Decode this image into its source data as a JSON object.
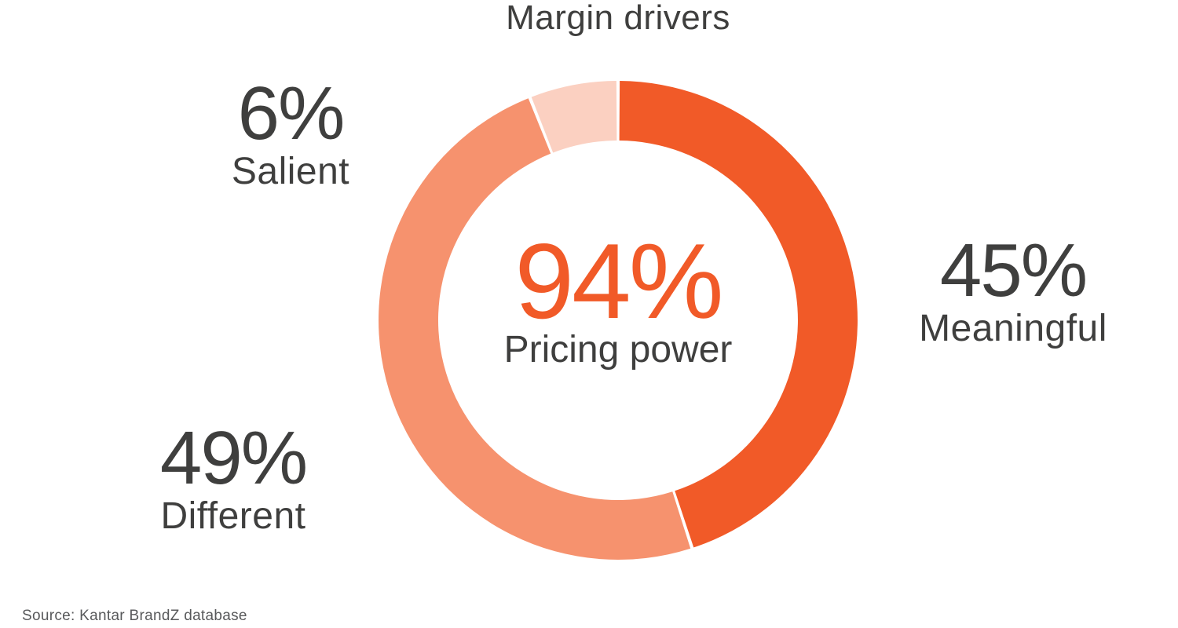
{
  "chart_data": {
    "type": "donut",
    "title": "Margin drivers",
    "total": 100,
    "start_angle_deg": 0,
    "clockwise": true,
    "gap_deg": 0.8,
    "legend_position": "callouts-around-donut",
    "center_label": {
      "value": "94%",
      "caption": "Pricing power"
    },
    "segments": [
      {
        "label": "Meaningful",
        "value": 45,
        "value_label": "45%",
        "color": "#F15A28"
      },
      {
        "label": "Different",
        "value": 49,
        "value_label": "49%",
        "color": "#F6926E"
      },
      {
        "label": "Salient",
        "value": 6,
        "value_label": "6%",
        "color": "#FBD0C1"
      }
    ]
  },
  "colors": {
    "text_dark": "#3F3F3E",
    "accent_orange": "#F15A28",
    "source_gray": "#58595B",
    "background": "#FFFFFF"
  },
  "source": {
    "text": "Source: Kantar BrandZ database"
  }
}
